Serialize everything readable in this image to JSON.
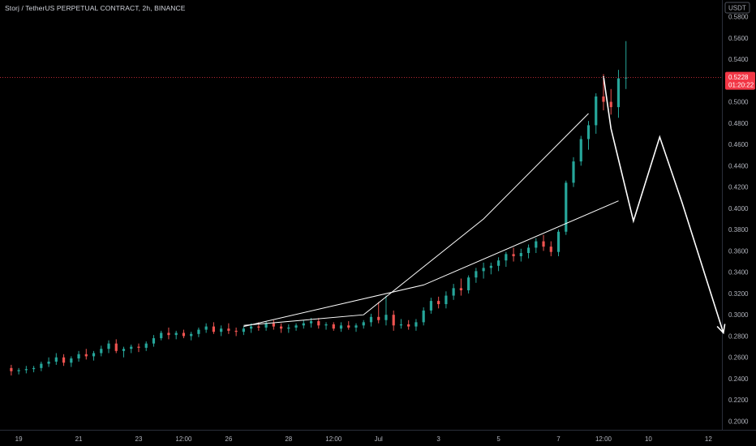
{
  "header": {
    "title": "Storj / TetherUS PERPETUAL CONTRACT, 2h, BINANCE"
  },
  "price_scale": {
    "currency": "USDT"
  },
  "last_price": {
    "value": "0.5228",
    "countdown": "01:20:22",
    "color": "#f23645"
  },
  "colors": {
    "background": "#000000",
    "up": "#26a69a",
    "down": "#ef5350",
    "drawing": "#ffffff",
    "axis_text": "#b2b5be"
  },
  "chart_data": {
    "type": "candlestick",
    "title": "Storj / TetherUS PERPETUAL CONTRACT, 2h, BINANCE",
    "xlabel": "",
    "ylabel": "",
    "currency": "USDT",
    "grid": false,
    "ylim": [
      0.19,
      0.59
    ],
    "xlim": [
      -1.5,
      94.8
    ],
    "y_ticks": [
      0.58,
      0.56,
      0.54,
      0.52,
      0.5,
      0.48,
      0.46,
      0.44,
      0.42,
      0.4,
      0.38,
      0.36,
      0.34,
      0.32,
      0.3,
      0.28,
      0.26,
      0.24,
      0.22,
      0.2
    ],
    "y_tick_labels": [
      "0.5800",
      "0.5600",
      "0.5400",
      "0.5200",
      "0.5000",
      "0.4800",
      "0.4600",
      "0.4400",
      "0.4200",
      "0.4000",
      "0.3800",
      "0.3600",
      "0.3400",
      "0.3200",
      "0.3000",
      "0.2800",
      "0.2600",
      "0.2400",
      "0.2200",
      "0.2000"
    ],
    "x_ticks": [
      1,
      9,
      17,
      23,
      29,
      37,
      43,
      49,
      57,
      65,
      73,
      79,
      85,
      93
    ],
    "x_tick_labels": [
      "19",
      "21",
      "23",
      "12:00",
      "26",
      "28",
      "12:00",
      "Jul",
      "3",
      "5",
      "7",
      "12:00",
      "10",
      "12"
    ],
    "candles": [
      [
        0.25,
        0.253,
        0.243,
        0.247
      ],
      [
        0.247,
        0.25,
        0.244,
        0.248
      ],
      [
        0.248,
        0.252,
        0.245,
        0.249
      ],
      [
        0.249,
        0.252,
        0.246,
        0.25
      ],
      [
        0.25,
        0.256,
        0.247,
        0.254
      ],
      [
        0.254,
        0.26,
        0.251,
        0.256
      ],
      [
        0.256,
        0.264,
        0.253,
        0.26
      ],
      [
        0.26,
        0.263,
        0.252,
        0.255
      ],
      [
        0.255,
        0.261,
        0.251,
        0.259
      ],
      [
        0.259,
        0.266,
        0.256,
        0.263
      ],
      [
        0.263,
        0.268,
        0.258,
        0.261
      ],
      [
        0.261,
        0.266,
        0.257,
        0.264
      ],
      [
        0.264,
        0.271,
        0.261,
        0.268
      ],
      [
        0.268,
        0.276,
        0.264,
        0.273
      ],
      [
        0.273,
        0.277,
        0.264,
        0.266
      ],
      [
        0.266,
        0.27,
        0.26,
        0.268
      ],
      [
        0.268,
        0.272,
        0.264,
        0.27
      ],
      [
        0.27,
        0.273,
        0.265,
        0.269
      ],
      [
        0.269,
        0.275,
        0.266,
        0.273
      ],
      [
        0.273,
        0.281,
        0.27,
        0.278
      ],
      [
        0.278,
        0.285,
        0.276,
        0.283
      ],
      [
        0.283,
        0.288,
        0.277,
        0.281
      ],
      [
        0.281,
        0.285,
        0.277,
        0.283
      ],
      [
        0.283,
        0.286,
        0.278,
        0.28
      ],
      [
        0.28,
        0.284,
        0.276,
        0.282
      ],
      [
        0.282,
        0.288,
        0.279,
        0.286
      ],
      [
        0.286,
        0.292,
        0.283,
        0.289
      ],
      [
        0.289,
        0.293,
        0.282,
        0.284
      ],
      [
        0.284,
        0.29,
        0.28,
        0.287
      ],
      [
        0.287,
        0.292,
        0.282,
        0.285
      ],
      [
        0.285,
        0.288,
        0.28,
        0.284
      ],
      [
        0.284,
        0.289,
        0.281,
        0.287
      ],
      [
        0.287,
        0.292,
        0.283,
        0.289
      ],
      [
        0.289,
        0.293,
        0.285,
        0.288
      ],
      [
        0.288,
        0.294,
        0.285,
        0.292
      ],
      [
        0.292,
        0.295,
        0.286,
        0.289
      ],
      [
        0.289,
        0.292,
        0.283,
        0.287
      ],
      [
        0.287,
        0.291,
        0.283,
        0.288
      ],
      [
        0.288,
        0.292,
        0.285,
        0.29
      ],
      [
        0.29,
        0.295,
        0.287,
        0.292
      ],
      [
        0.292,
        0.297,
        0.288,
        0.294
      ],
      [
        0.294,
        0.297,
        0.287,
        0.29
      ],
      [
        0.29,
        0.293,
        0.286,
        0.291
      ],
      [
        0.291,
        0.293,
        0.285,
        0.287
      ],
      [
        0.287,
        0.293,
        0.284,
        0.29
      ],
      [
        0.29,
        0.294,
        0.286,
        0.288
      ],
      [
        0.288,
        0.292,
        0.284,
        0.29
      ],
      [
        0.29,
        0.295,
        0.287,
        0.293
      ],
      [
        0.293,
        0.301,
        0.289,
        0.298
      ],
      [
        0.298,
        0.312,
        0.292,
        0.295
      ],
      [
        0.295,
        0.318,
        0.29,
        0.3
      ],
      [
        0.3,
        0.304,
        0.285,
        0.29
      ],
      [
        0.29,
        0.296,
        0.287,
        0.291
      ],
      [
        0.291,
        0.295,
        0.286,
        0.289
      ],
      [
        0.289,
        0.296,
        0.285,
        0.293
      ],
      [
        0.293,
        0.307,
        0.29,
        0.304
      ],
      [
        0.304,
        0.316,
        0.301,
        0.313
      ],
      [
        0.313,
        0.317,
        0.306,
        0.31
      ],
      [
        0.31,
        0.322,
        0.306,
        0.318
      ],
      [
        0.318,
        0.329,
        0.314,
        0.325
      ],
      [
        0.325,
        0.334,
        0.318,
        0.323
      ],
      [
        0.323,
        0.337,
        0.32,
        0.335
      ],
      [
        0.335,
        0.344,
        0.33,
        0.341
      ],
      [
        0.341,
        0.349,
        0.334,
        0.344
      ],
      [
        0.344,
        0.349,
        0.338,
        0.346
      ],
      [
        0.346,
        0.354,
        0.341,
        0.351
      ],
      [
        0.351,
        0.359,
        0.345,
        0.357
      ],
      [
        0.357,
        0.363,
        0.35,
        0.355
      ],
      [
        0.355,
        0.362,
        0.35,
        0.358
      ],
      [
        0.358,
        0.366,
        0.353,
        0.363
      ],
      [
        0.363,
        0.372,
        0.358,
        0.369
      ],
      [
        0.369,
        0.375,
        0.36,
        0.364
      ],
      [
        0.364,
        0.369,
        0.355,
        0.359
      ],
      [
        0.359,
        0.38,
        0.355,
        0.378
      ],
      [
        0.378,
        0.426,
        0.375,
        0.424
      ],
      [
        0.424,
        0.448,
        0.42,
        0.444
      ],
      [
        0.444,
        0.468,
        0.44,
        0.465
      ],
      [
        0.465,
        0.482,
        0.455,
        0.478
      ],
      [
        0.478,
        0.508,
        0.47,
        0.505
      ],
      [
        0.505,
        0.526,
        0.492,
        0.5
      ],
      [
        0.5,
        0.512,
        0.488,
        0.495
      ],
      [
        0.495,
        0.53,
        0.485,
        0.522
      ],
      [
        0.522,
        0.557,
        0.512,
        0.5228
      ]
    ]
  },
  "drawings": {
    "rising_wedge_upper": [
      [
        31,
        0.29
      ],
      [
        47,
        0.3
      ],
      [
        63,
        0.39
      ],
      [
        77,
        0.489
      ]
    ],
    "rising_wedge_lower": [
      [
        31,
        0.289
      ],
      [
        55,
        0.328
      ],
      [
        81,
        0.407
      ]
    ],
    "projection_path": [
      [
        79,
        0.524
      ],
      [
        80,
        0.475
      ],
      [
        83,
        0.388
      ],
      [
        86.5,
        0.467
      ],
      [
        89.5,
        0.405
      ],
      [
        95,
        0.283
      ]
    ]
  }
}
